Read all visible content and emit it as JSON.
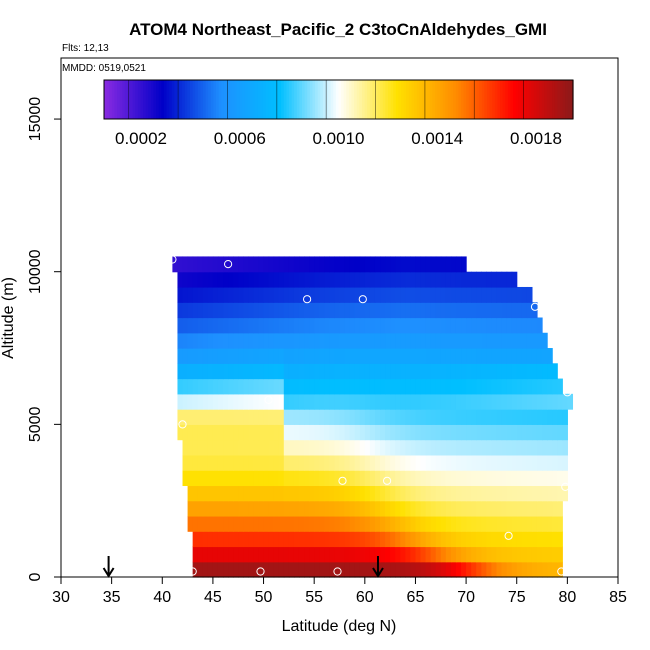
{
  "chart_data": {
    "type": "heatmap",
    "title": "ATOM4 Northeast_Pacific_2 C3toCnAldehydes_GMI",
    "flights_note": "Flts: 12,13",
    "dates_note": "MMDD: 0519,0521",
    "xlabel": "Latitude (deg N)",
    "ylabel": "Altitude (m)",
    "xlim": [
      30,
      85
    ],
    "ylim": [
      0,
      17000
    ],
    "x_ticks": [
      30,
      35,
      40,
      45,
      50,
      55,
      60,
      65,
      70,
      75,
      80,
      85
    ],
    "x_tick_labels": [
      "30",
      "35",
      "40",
      "45",
      "50",
      "55",
      "60",
      "65",
      "70",
      "75",
      "80",
      "85"
    ],
    "y_ticks": [
      0,
      5000,
      10000,
      15000
    ],
    "y_tick_labels": [
      "0",
      "5000",
      "10000",
      "15000"
    ],
    "colorbar": {
      "range": [
        5e-05,
        0.00195
      ],
      "ticks": [
        0.0002,
        0.0006,
        0.001,
        0.0014,
        0.0018
      ],
      "tick_labels": [
        "0.0002",
        "0.0006",
        "0.0010",
        "0.0014",
        "0.0018"
      ],
      "colors": [
        "#8a2be2",
        "#0000c8",
        "#1e90ff",
        "#00bfff",
        "#ffffff",
        "#ffe100",
        "#ff8c00",
        "#ff0000",
        "#8b1a1a"
      ]
    },
    "altitude_bins": [
      250,
      750,
      1250,
      1750,
      2250,
      2750,
      3250,
      3750,
      4250,
      4750,
      5250,
      5750,
      6250,
      6750,
      7250,
      7750,
      8250,
      8750,
      9250,
      9750,
      10250
    ],
    "lat_bins": [
      41.25,
      41.75,
      42.25,
      42.75,
      43.25,
      43.75,
      44.25,
      44.75,
      45.25,
      45.75,
      46.25,
      46.75,
      47.25,
      47.75,
      48.25,
      48.75,
      49.25,
      49.75,
      50.25,
      50.75,
      51.25,
      51.75,
      52.25,
      52.75,
      53.25,
      53.75,
      54.25,
      54.75,
      55.25,
      55.75,
      56.25,
      56.75,
      57.25,
      57.75,
      58.25,
      58.75,
      59.25,
      59.75,
      60.25,
      60.75,
      61.25,
      61.75,
      62.25,
      62.75,
      63.25,
      63.75,
      64.25,
      64.75,
      65.25,
      65.75,
      66.25,
      66.75,
      67.25,
      67.75,
      68.25,
      68.75,
      69.25,
      69.75,
      70.25,
      70.75,
      71.25,
      71.75,
      72.25,
      72.75,
      73.25,
      73.75,
      74.25,
      74.75,
      75.25,
      75.75,
      76.25,
      76.75,
      77.25,
      77.75,
      78.25,
      78.75,
      79.25,
      79.75,
      80.25
    ],
    "domain_upper_lat": [
      79.5,
      79.5,
      79.5,
      79.5,
      79.5,
      79.8,
      80.0,
      80.0,
      80.0,
      80.0,
      80.0,
      80.5,
      79.5,
      79.2,
      78.5,
      78.0,
      77.5,
      77.0,
      76.5,
      75.0,
      70.0
    ],
    "domain_lower_lat": [
      43.0,
      43.0,
      43.0,
      42.5,
      42.5,
      42.5,
      42.0,
      42.0,
      42.0,
      41.5,
      41.5,
      41.5,
      41.5,
      41.5,
      41.5,
      41.5,
      41.5,
      41.5,
      41.5,
      41.5,
      41.0
    ],
    "field_description": "Modelled C3toCn aldehyde mixing ratio: highest (~0.0018-0.0019) in the boundary layer south of ~60N, decreasing with altitude and latitude to ~0.0001 near 10 km.",
    "flight_points": [
      {
        "lat": 41.0,
        "alt": 10400
      },
      {
        "lat": 46.5,
        "alt": 10250
      },
      {
        "lat": 54.3,
        "alt": 9100
      },
      {
        "lat": 59.8,
        "alt": 9100
      },
      {
        "lat": 69.8,
        "alt": 10750
      },
      {
        "lat": 76.8,
        "alt": 8850
      },
      {
        "lat": 80.0,
        "alt": 6050
      },
      {
        "lat": 50.5,
        "alt": 5800
      },
      {
        "lat": 42.0,
        "alt": 5000
      },
      {
        "lat": 57.8,
        "alt": 3150
      },
      {
        "lat": 62.2,
        "alt": 3150
      },
      {
        "lat": 79.8,
        "alt": 2950
      },
      {
        "lat": 74.2,
        "alt": 1350
      },
      {
        "lat": 43.0,
        "alt": 180
      },
      {
        "lat": 49.7,
        "alt": 180
      },
      {
        "lat": 57.3,
        "alt": 180
      },
      {
        "lat": 79.4,
        "alt": 180
      }
    ],
    "arrows": [
      {
        "lat": 34.7,
        "label": ""
      },
      {
        "lat": 61.3,
        "label": ""
      }
    ]
  }
}
